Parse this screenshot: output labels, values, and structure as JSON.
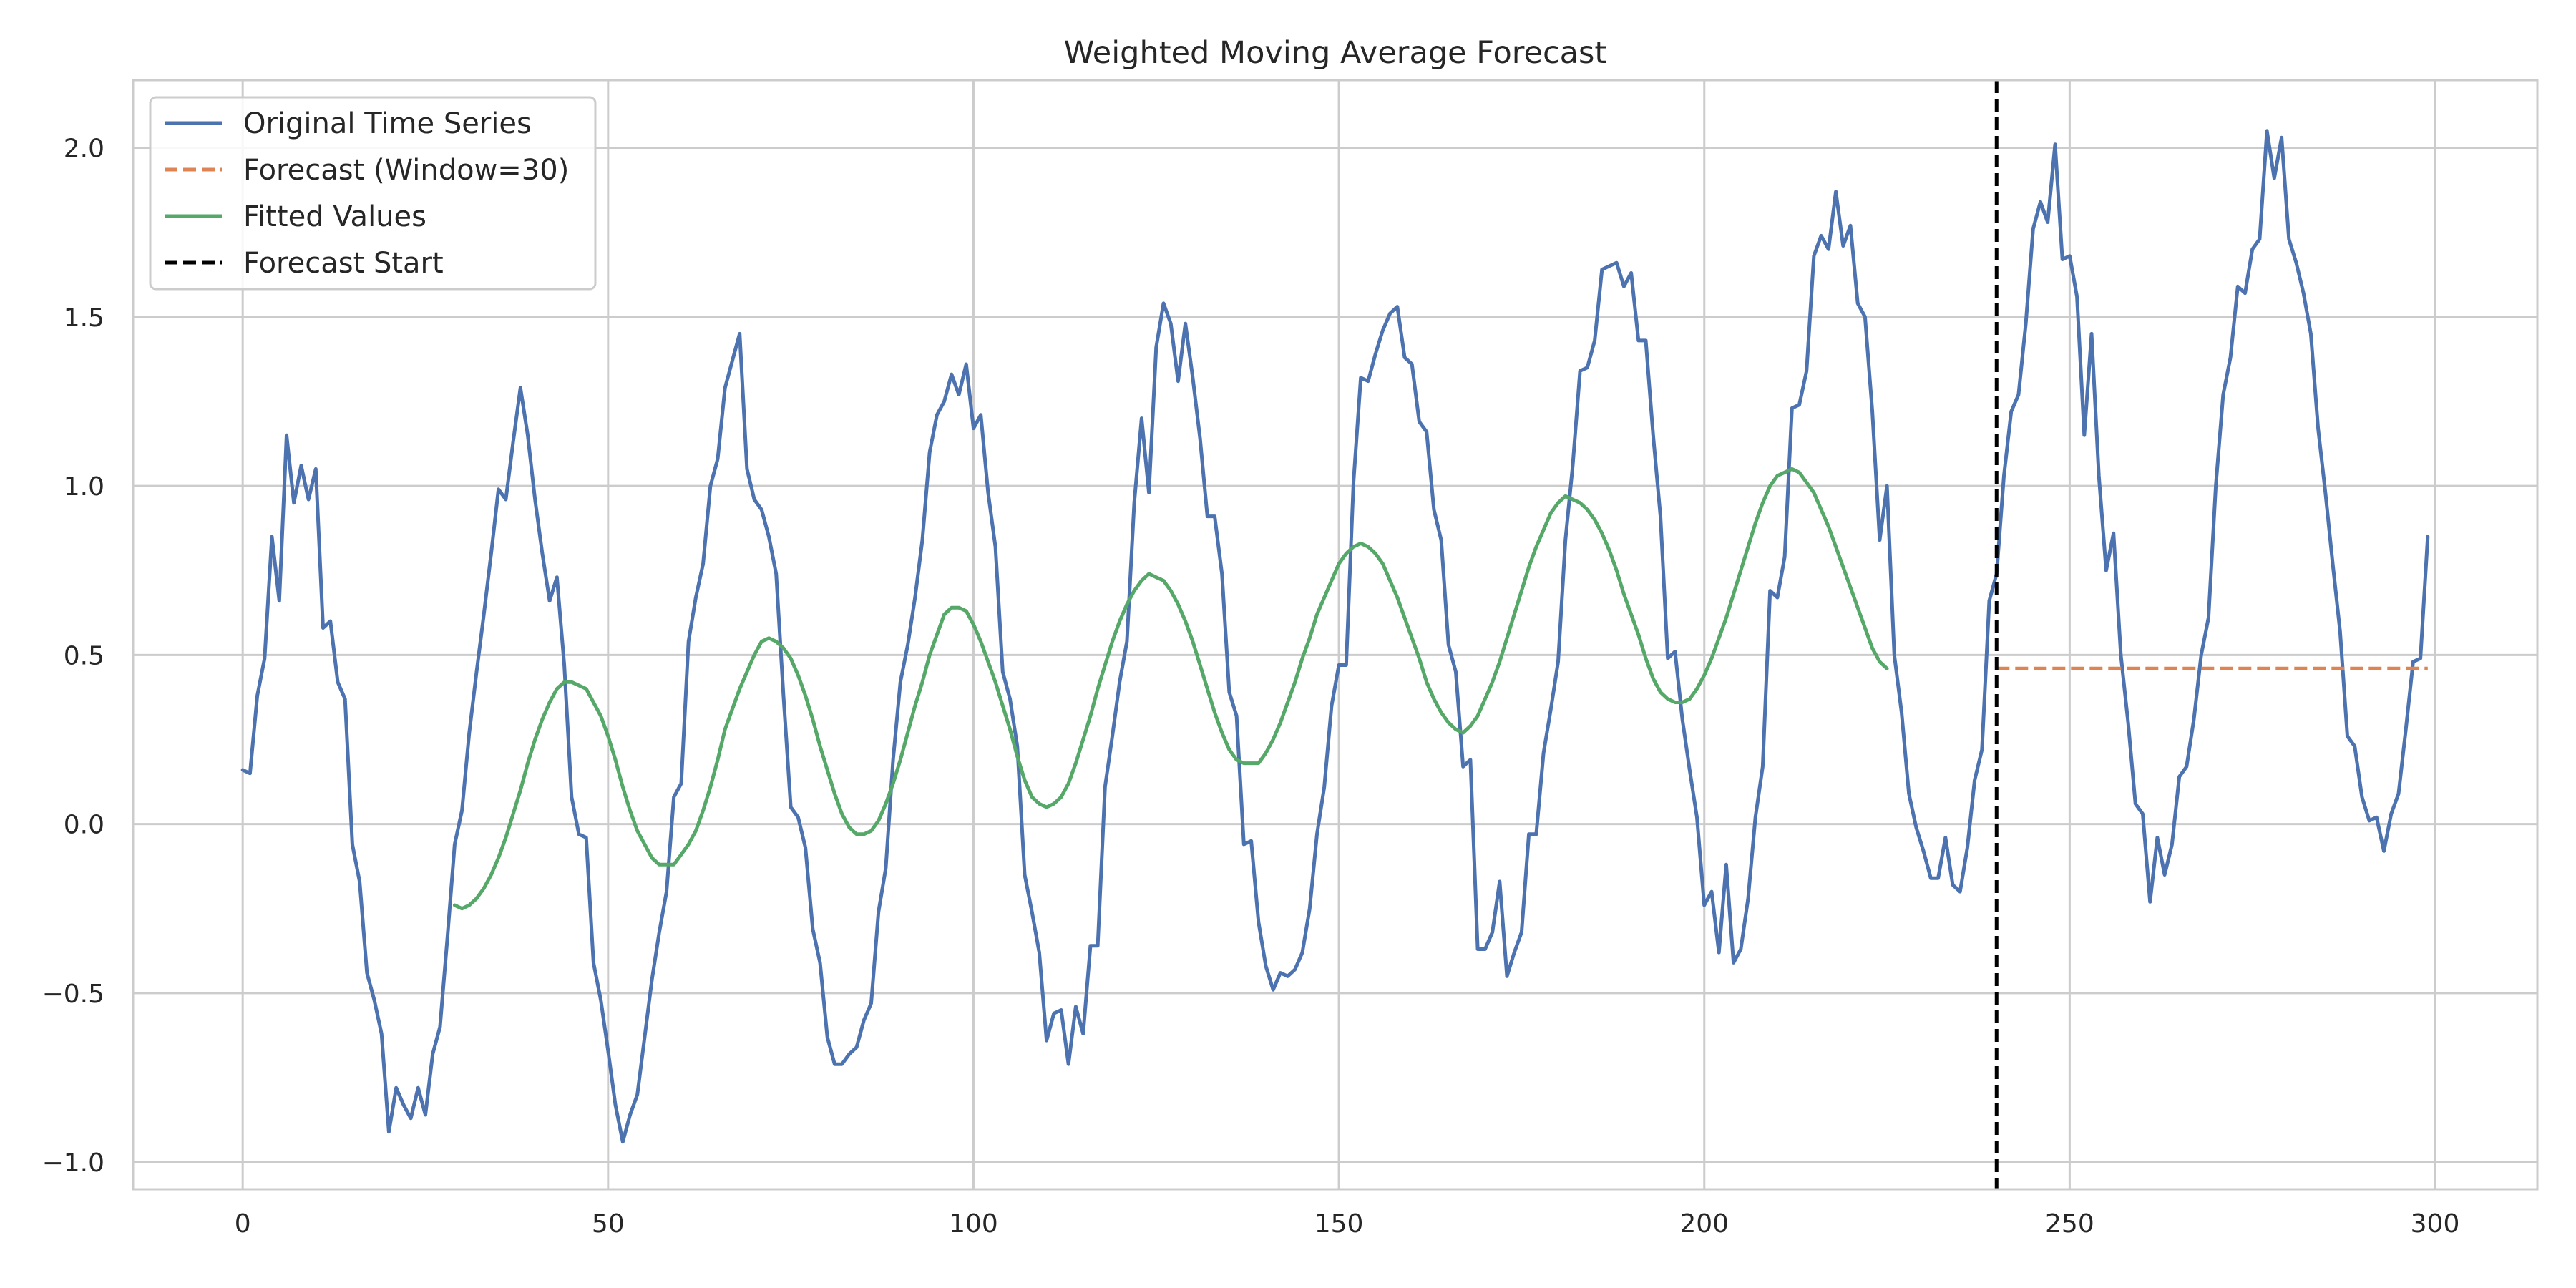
{
  "chart_data": {
    "type": "line",
    "title": "Weighted Moving Average Forecast",
    "xlabel": "",
    "ylabel": "",
    "xlim": [
      -15,
      314
    ],
    "ylim": [
      -1.08,
      2.2
    ],
    "xticks": [
      0,
      50,
      100,
      150,
      200,
      250,
      300
    ],
    "yticks": [
      -1.0,
      -0.5,
      0.0,
      0.5,
      1.0,
      1.5,
      2.0
    ],
    "ytick_labels": [
      "−1.0",
      "−0.5",
      "0.0",
      "0.5",
      "1.0",
      "1.5",
      "2.0"
    ],
    "grid": true,
    "legend_position": "top-left",
    "forecast_start": 240,
    "series": [
      {
        "name": "Original Time Series",
        "color": "#4c72b0",
        "style": "solid",
        "x_start": 0,
        "values": [
          0.16,
          0.15,
          0.38,
          0.49,
          0.85,
          0.66,
          1.15,
          0.95,
          1.06,
          0.96,
          1.05,
          0.58,
          0.6,
          0.42,
          0.37,
          -0.06,
          -0.17,
          -0.44,
          -0.52,
          -0.62,
          -0.91,
          -0.78,
          -0.83,
          -0.87,
          -0.78,
          -0.86,
          -0.68,
          -0.6,
          -0.34,
          -0.06,
          0.04,
          0.27,
          0.45,
          0.62,
          0.8,
          0.99,
          0.96,
          1.13,
          1.29,
          1.15,
          0.96,
          0.8,
          0.66,
          0.73,
          0.47,
          0.08,
          -0.03,
          -0.04,
          -0.41,
          -0.52,
          -0.67,
          -0.83,
          -0.94,
          -0.86,
          -0.8,
          -0.63,
          -0.46,
          -0.32,
          -0.2,
          0.08,
          0.12,
          0.54,
          0.67,
          0.77,
          1.0,
          1.08,
          1.29,
          1.37,
          1.45,
          1.05,
          0.96,
          0.93,
          0.85,
          0.74,
          0.38,
          0.05,
          0.02,
          -0.07,
          -0.31,
          -0.41,
          -0.63,
          -0.71,
          -0.71,
          -0.68,
          -0.66,
          -0.58,
          -0.53,
          -0.26,
          -0.13,
          0.19,
          0.42,
          0.53,
          0.67,
          0.84,
          1.1,
          1.21,
          1.25,
          1.33,
          1.27,
          1.36,
          1.17,
          1.21,
          0.98,
          0.82,
          0.45,
          0.37,
          0.23,
          -0.15,
          -0.26,
          -0.38,
          -0.64,
          -0.56,
          -0.55,
          -0.71,
          -0.54,
          -0.62,
          -0.36,
          -0.36,
          0.11,
          0.26,
          0.42,
          0.54,
          0.95,
          1.2,
          0.98,
          1.41,
          1.54,
          1.48,
          1.31,
          1.48,
          1.32,
          1.14,
          0.91,
          0.91,
          0.74,
          0.39,
          0.32,
          -0.06,
          -0.05,
          -0.29,
          -0.42,
          -0.49,
          -0.44,
          -0.45,
          -0.43,
          -0.38,
          -0.25,
          -0.03,
          0.11,
          0.35,
          0.47,
          0.47,
          1.01,
          1.32,
          1.31,
          1.39,
          1.46,
          1.51,
          1.53,
          1.38,
          1.36,
          1.19,
          1.16,
          0.93,
          0.84,
          0.53,
          0.45,
          0.17,
          0.19,
          -0.37,
          -0.37,
          -0.32,
          -0.17,
          -0.45,
          -0.38,
          -0.32,
          -0.03,
          -0.03,
          0.21,
          0.34,
          0.48,
          0.84,
          1.06,
          1.34,
          1.35,
          1.43,
          1.64,
          1.65,
          1.66,
          1.59,
          1.63,
          1.43,
          1.43,
          1.15,
          0.91,
          0.49,
          0.51,
          0.31,
          0.16,
          0.02,
          -0.24,
          -0.2,
          -0.38,
          -0.12,
          -0.41,
          -0.37,
          -0.22,
          0.02,
          0.17,
          0.69,
          0.67,
          0.79,
          1.23,
          1.24,
          1.34,
          1.68,
          1.74,
          1.7,
          1.87,
          1.71,
          1.77,
          1.54,
          1.5,
          1.22,
          0.84,
          1.0,
          0.5,
          0.33,
          0.09,
          -0.01,
          -0.08,
          -0.16,
          -0.16,
          -0.04,
          -0.18,
          -0.2,
          -0.07,
          0.13,
          0.22,
          0.66,
          0.74,
          1.03,
          1.22,
          1.27,
          1.48,
          1.76,
          1.84,
          1.78,
          2.01,
          1.67,
          1.68,
          1.56,
          1.15,
          1.45,
          1.03,
          0.75,
          0.86,
          0.5,
          0.3,
          0.06,
          0.03,
          -0.23,
          -0.04,
          -0.15,
          -0.06,
          0.14,
          0.17,
          0.31,
          0.5,
          0.61,
          1.0,
          1.27,
          1.38,
          1.59,
          1.57,
          1.7,
          1.73,
          2.05,
          1.91,
          2.03,
          1.73,
          1.66,
          1.57,
          1.45,
          1.17,
          0.98,
          0.77,
          0.57,
          0.26,
          0.23,
          0.08,
          0.01,
          0.02,
          -0.08,
          0.03,
          0.09,
          0.28,
          0.48,
          0.49,
          0.85
        ]
      },
      {
        "name": "Forecast (Window=30)",
        "color": "#dd8452",
        "style": "dashed",
        "x": [
          240,
          299
        ],
        "values": [
          0.46,
          0.46
        ]
      },
      {
        "name": "Fitted Values",
        "color": "#55a868",
        "style": "solid",
        "x_start": 29,
        "values": [
          -0.24,
          -0.25,
          -0.24,
          -0.22,
          -0.19,
          -0.15,
          -0.1,
          -0.04,
          0.03,
          0.1,
          0.18,
          0.25,
          0.31,
          0.36,
          0.4,
          0.42,
          0.42,
          0.41,
          0.4,
          0.36,
          0.32,
          0.26,
          0.19,
          0.11,
          0.04,
          -0.02,
          -0.06,
          -0.1,
          -0.12,
          -0.12,
          -0.12,
          -0.09,
          -0.06,
          -0.02,
          0.04,
          0.11,
          0.19,
          0.28,
          0.34,
          0.4,
          0.45,
          0.5,
          0.54,
          0.55,
          0.54,
          0.52,
          0.49,
          0.44,
          0.38,
          0.31,
          0.23,
          0.16,
          0.09,
          0.03,
          -0.01,
          -0.03,
          -0.03,
          -0.02,
          0.01,
          0.06,
          0.12,
          0.19,
          0.27,
          0.35,
          0.42,
          0.5,
          0.56,
          0.62,
          0.64,
          0.64,
          0.63,
          0.59,
          0.54,
          0.48,
          0.42,
          0.35,
          0.28,
          0.2,
          0.13,
          0.08,
          0.06,
          0.05,
          0.06,
          0.08,
          0.12,
          0.18,
          0.25,
          0.32,
          0.4,
          0.47,
          0.54,
          0.6,
          0.65,
          0.69,
          0.72,
          0.74,
          0.73,
          0.72,
          0.69,
          0.65,
          0.6,
          0.54,
          0.47,
          0.4,
          0.33,
          0.27,
          0.22,
          0.19,
          0.18,
          0.18,
          0.18,
          0.21,
          0.25,
          0.3,
          0.36,
          0.42,
          0.49,
          0.55,
          0.62,
          0.67,
          0.72,
          0.77,
          0.8,
          0.82,
          0.83,
          0.82,
          0.8,
          0.77,
          0.72,
          0.67,
          0.61,
          0.55,
          0.49,
          0.42,
          0.37,
          0.33,
          0.3,
          0.28,
          0.27,
          0.29,
          0.32,
          0.37,
          0.42,
          0.48,
          0.55,
          0.62,
          0.69,
          0.76,
          0.82,
          0.87,
          0.92,
          0.95,
          0.97,
          0.96,
          0.95,
          0.93,
          0.9,
          0.86,
          0.81,
          0.75,
          0.68,
          0.62,
          0.56,
          0.49,
          0.43,
          0.39,
          0.37,
          0.36,
          0.36,
          0.37,
          0.4,
          0.44,
          0.49,
          0.55,
          0.61,
          0.68,
          0.75,
          0.82,
          0.89,
          0.95,
          1.0,
          1.03,
          1.04,
          1.05,
          1.04,
          1.01,
          0.98,
          0.93,
          0.88,
          0.82,
          0.76,
          0.7,
          0.64,
          0.58,
          0.52,
          0.48,
          0.46
        ]
      },
      {
        "name": "Forecast Start",
        "color": "#000000",
        "style": "dashed"
      }
    ]
  }
}
